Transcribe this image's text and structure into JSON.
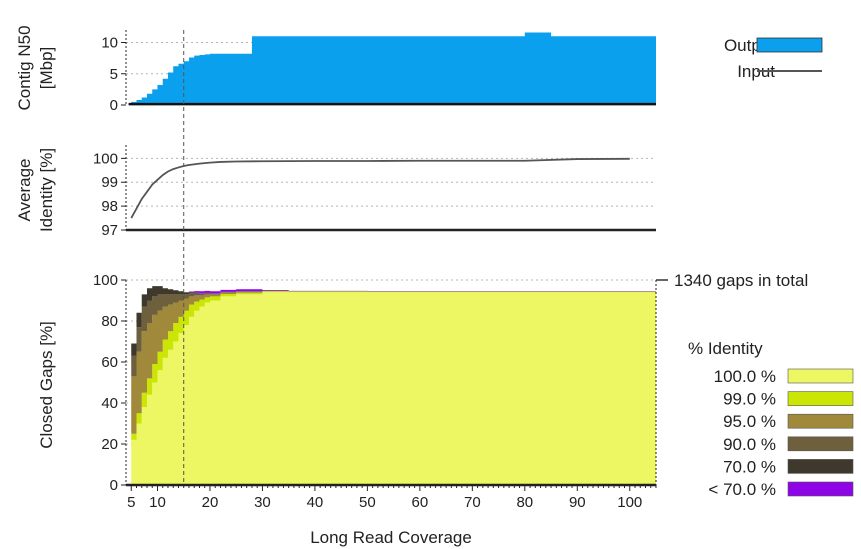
{
  "chart_data": [
    {
      "type": "area",
      "panel": "contig-n50",
      "ylabel": [
        "Contig N50",
        "[Mbp]"
      ],
      "xlim": [
        4,
        105
      ],
      "ylim": [
        0,
        12
      ],
      "yticks": [
        0,
        5,
        10
      ],
      "grid": true,
      "legend_placement": "right",
      "series": [
        {
          "name": "Output",
          "kind": "area",
          "color": "#0aa0ee",
          "x": [
            4.5,
            5,
            6,
            7,
            8,
            9,
            10,
            11,
            12,
            13,
            14,
            15,
            16,
            17,
            18,
            19,
            20,
            22,
            24,
            26,
            28,
            75,
            80,
            85,
            105
          ],
          "y": [
            0.2,
            0.5,
            0.8,
            1.2,
            1.8,
            2.5,
            3.2,
            4.2,
            5.2,
            6.2,
            6.6,
            7.0,
            7.6,
            7.9,
            8.0,
            8.1,
            8.2,
            8.2,
            8.2,
            8.2,
            11.0,
            11.0,
            11.6,
            11.0,
            11.0
          ]
        },
        {
          "name": "Input",
          "kind": "line",
          "color": "#555555",
          "x": [
            4.5,
            105
          ],
          "y": [
            0.15,
            0.15
          ]
        }
      ]
    },
    {
      "type": "line",
      "panel": "average-identity",
      "ylabel": [
        "Average",
        "Identity [%]"
      ],
      "xlim": [
        4,
        105
      ],
      "ylim": [
        97,
        100.35
      ],
      "yticks": [
        97,
        98,
        99,
        100
      ],
      "grid": true,
      "series": [
        {
          "name": "identity",
          "color": "#555555",
          "x": [
            5,
            6,
            7,
            8,
            9,
            10,
            11,
            12,
            13,
            14,
            15,
            16,
            18,
            20,
            22,
            25,
            30,
            40,
            50,
            60,
            70,
            80,
            90,
            100
          ],
          "y": [
            97.5,
            97.9,
            98.3,
            98.6,
            98.9,
            99.1,
            99.3,
            99.45,
            99.55,
            99.62,
            99.68,
            99.72,
            99.78,
            99.82,
            99.85,
            99.87,
            99.88,
            99.89,
            99.89,
            99.9,
            99.9,
            99.9,
            99.97,
            99.98
          ]
        },
        {
          "name": "baseline",
          "color": "#222222",
          "x": [
            4,
            105
          ],
          "y": [
            97,
            97
          ]
        }
      ]
    },
    {
      "type": "area",
      "panel": "closed-gaps",
      "ylabel": [
        "Closed Gaps [%]"
      ],
      "xlabel": "Long Read Coverage",
      "xlim": [
        4,
        105
      ],
      "ylim": [
        0,
        100
      ],
      "yticks": [
        0,
        20,
        40,
        60,
        80,
        100
      ],
      "xticks": [
        5,
        10,
        20,
        30,
        40,
        50,
        60,
        70,
        80,
        90,
        100
      ],
      "stacked": true,
      "grid": true,
      "annotation": "1340 gaps in total",
      "legend_title": "% Identity",
      "legend_placement": "right",
      "x": [
        5,
        6,
        7,
        8,
        9,
        10,
        11,
        12,
        13,
        14,
        15,
        16,
        17,
        18,
        19,
        20,
        22,
        25,
        30,
        35,
        40,
        50,
        60,
        70,
        80,
        90,
        100,
        105
      ],
      "series": [
        {
          "name": "100.0 %",
          "color": "#ecf763",
          "values": [
            22,
            30,
            38,
            44,
            50,
            56,
            62,
            66,
            70,
            74,
            78,
            82,
            85,
            87,
            89,
            90,
            92,
            93,
            94,
            94,
            94,
            94,
            94,
            94,
            94,
            94,
            94,
            94
          ]
        },
        {
          "name": "99.0 %",
          "color": "#cbe604",
          "values": [
            3,
            5,
            7,
            8,
            9,
            9,
            9,
            9,
            9,
            8,
            7,
            6,
            4.5,
            3.5,
            2.5,
            2,
            1.2,
            0.8,
            0.5,
            0.4,
            0.4,
            0.3,
            0.3,
            0.3,
            0.3,
            0.3,
            0.3,
            0.3
          ]
        },
        {
          "name": "95.0 %",
          "color": "#a0893a",
          "values": [
            28,
            30,
            30,
            27,
            24,
            20,
            16,
            13,
            10,
            8,
            6,
            4,
            3,
            2,
            1.5,
            1,
            0.6,
            0.4,
            0.2,
            0.1,
            0.1,
            0.1,
            0.1,
            0.1,
            0.1,
            0.1,
            0.1,
            0.1
          ]
        },
        {
          "name": "90.0 %",
          "color": "#6e5f3d",
          "values": [
            10,
            12,
            12,
            11,
            9,
            8,
            6,
            5,
            4,
            3,
            2,
            1.5,
            1,
            0.8,
            0.5,
            0.3,
            0.2,
            0.1,
            0,
            0,
            0,
            0,
            0,
            0,
            0,
            0,
            0,
            0
          ]
        },
        {
          "name": "70.0 %",
          "color": "#3f382c",
          "values": [
            6,
            7,
            6,
            6,
            5,
            4,
            3,
            2.5,
            2,
            1.5,
            1,
            0.5,
            0.3,
            0.2,
            0.2,
            0.2,
            0.2,
            0.2,
            0.1,
            0,
            0,
            0,
            0,
            0,
            0,
            0,
            0,
            0
          ]
        },
        {
          "name": "< 70.0 %",
          "color": "#8e05e6",
          "values": [
            0,
            0,
            0,
            0,
            0,
            0,
            0,
            0,
            0,
            0,
            0,
            0.4,
            0.8,
            1.0,
            1.0,
            1.0,
            1.0,
            1.0,
            0.3,
            0.2,
            0.2,
            0.2,
            0.2,
            0.2,
            0.2,
            0.2,
            0.2,
            0.2
          ]
        }
      ]
    }
  ],
  "highlight_x": 15
}
